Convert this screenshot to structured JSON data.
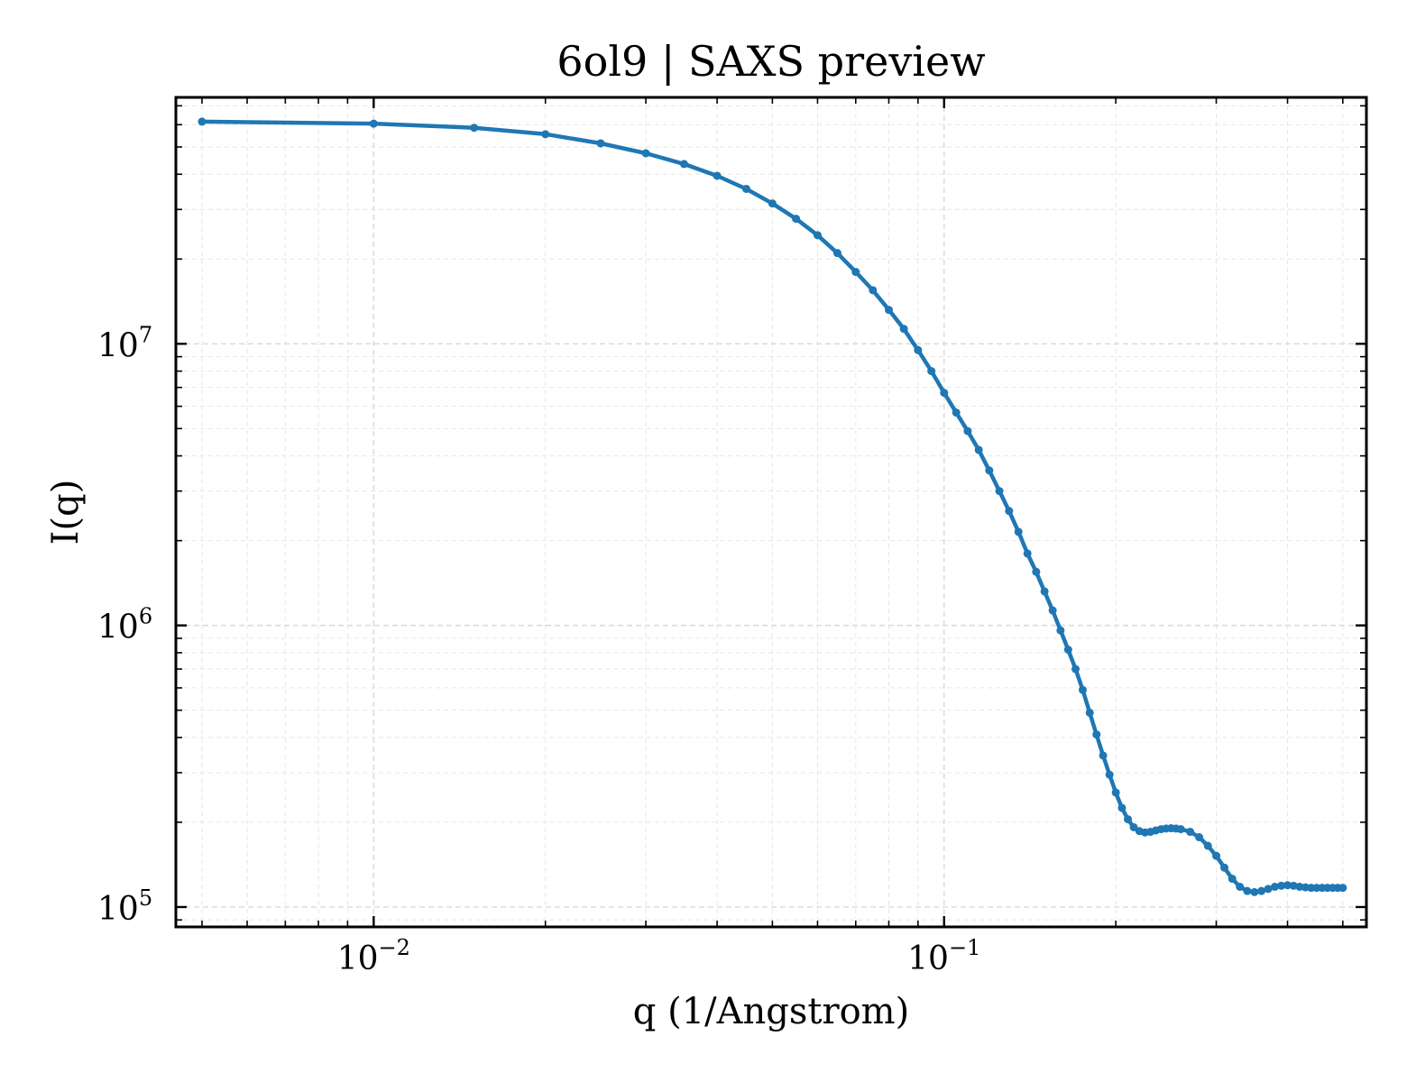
{
  "chart_data": {
    "type": "line",
    "title": "6ol9 | SAXS preview",
    "xlabel": "q (1/Angstrom)",
    "ylabel": "I(q)",
    "xscale": "log",
    "yscale": "log",
    "xlim": [
      0.0045,
      0.55
    ],
    "ylim": [
      85000,
      75000000
    ],
    "grid": true,
    "line_color": "#1f77b4",
    "x_ticks": [
      {
        "value": 0.01,
        "base": "10",
        "exp": "−2"
      },
      {
        "value": 0.1,
        "base": "10",
        "exp": "−1"
      }
    ],
    "y_ticks": [
      {
        "value": 100000,
        "base": "10",
        "exp": "5"
      },
      {
        "value": 1000000,
        "base": "10",
        "exp": "6"
      },
      {
        "value": 10000000,
        "base": "10",
        "exp": "7"
      }
    ],
    "series": [
      {
        "x": [
          0.005,
          0.01,
          0.015,
          0.02,
          0.025,
          0.03,
          0.035,
          0.04,
          0.045,
          0.05,
          0.055,
          0.06,
          0.065,
          0.07,
          0.075,
          0.08,
          0.085,
          0.09,
          0.095,
          0.1,
          0.105,
          0.11,
          0.115,
          0.12,
          0.125,
          0.13,
          0.135,
          0.14,
          0.145,
          0.15,
          0.155,
          0.16,
          0.165,
          0.17,
          0.175,
          0.18,
          0.185,
          0.19,
          0.195,
          0.2,
          0.205,
          0.21,
          0.215,
          0.22,
          0.225,
          0.23,
          0.235,
          0.24,
          0.245,
          0.25,
          0.255,
          0.26,
          0.27,
          0.28,
          0.29,
          0.3,
          0.31,
          0.32,
          0.33,
          0.34,
          0.35,
          0.36,
          0.37,
          0.38,
          0.39,
          0.4,
          0.41,
          0.42,
          0.43,
          0.44,
          0.45,
          0.46,
          0.47,
          0.48,
          0.49,
          0.5
        ],
        "y": [
          61500000,
          60500000,
          58500000,
          55500000,
          51500000,
          47500000,
          43500000,
          39500000,
          35500000,
          31500000,
          27800000,
          24300000,
          21000000,
          18000000,
          15500000,
          13200000,
          11300000,
          9500000,
          8000000,
          6700000,
          5700000,
          4900000,
          4200000,
          3550000,
          3000000,
          2550000,
          2150000,
          1800000,
          1550000,
          1320000,
          1130000,
          960000,
          820000,
          700000,
          590000,
          490000,
          410000,
          345000,
          295000,
          255000,
          225000,
          205000,
          192000,
          186000,
          184000,
          185000,
          187000,
          189000,
          190000,
          190500,
          190000,
          189000,
          185000,
          177000,
          165000,
          152000,
          138000,
          126000,
          118000,
          114000,
          113000,
          114000,
          116000,
          118000,
          119000,
          119500,
          119000,
          118000,
          117500,
          117000,
          117000,
          117000,
          117000,
          117000,
          117000,
          117000
        ]
      }
    ]
  }
}
